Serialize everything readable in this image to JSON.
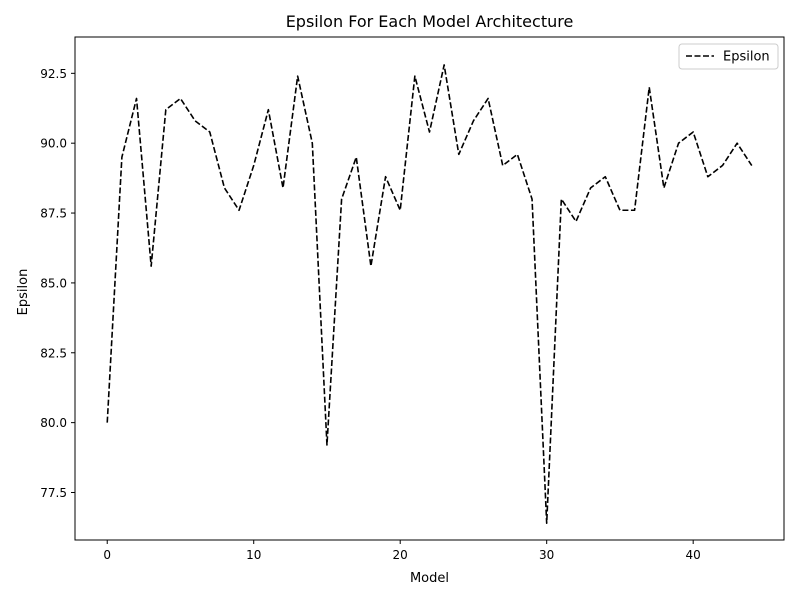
{
  "chart_data": {
    "type": "line",
    "title": "Epsilon For Each Model Architecture",
    "xlabel": "Model",
    "ylabel": "Epsilon",
    "xlim": [
      -2.2,
      46.2
    ],
    "ylim": [
      75.8,
      93.8
    ],
    "xticks": [
      0,
      10,
      20,
      30,
      40
    ],
    "yticks": [
      77.5,
      80.0,
      82.5,
      85.0,
      87.5,
      90.0,
      92.5
    ],
    "ytick_labels": [
      "77.5",
      "80.0",
      "82.5",
      "85.0",
      "87.5",
      "90.0",
      "92.5"
    ],
    "grid": false,
    "legend_position": "top-right",
    "series": [
      {
        "name": "Epsilon",
        "color": "#000000",
        "line_style": "dashed",
        "x": [
          0,
          1,
          2,
          3,
          4,
          5,
          6,
          7,
          8,
          9,
          10,
          11,
          12,
          13,
          14,
          15,
          16,
          17,
          18,
          19,
          20,
          21,
          22,
          23,
          24,
          25,
          26,
          27,
          28,
          29,
          30,
          31,
          32,
          33,
          34,
          35,
          36,
          37,
          38,
          39,
          40,
          41,
          42,
          43,
          44
        ],
        "values": [
          80.0,
          89.5,
          91.6,
          85.6,
          91.2,
          91.6,
          90.8,
          90.4,
          88.4,
          87.6,
          89.2,
          91.2,
          88.4,
          92.4,
          90.0,
          79.2,
          88.0,
          89.5,
          85.6,
          88.8,
          87.6,
          92.4,
          90.4,
          92.8,
          89.6,
          90.8,
          91.6,
          89.2,
          89.6,
          88.0,
          76.4,
          88.0,
          87.2,
          88.4,
          88.8,
          87.6,
          87.6,
          92.0,
          88.4,
          90.0,
          90.4,
          88.8,
          89.2,
          90.0,
          89.2
        ]
      }
    ]
  }
}
